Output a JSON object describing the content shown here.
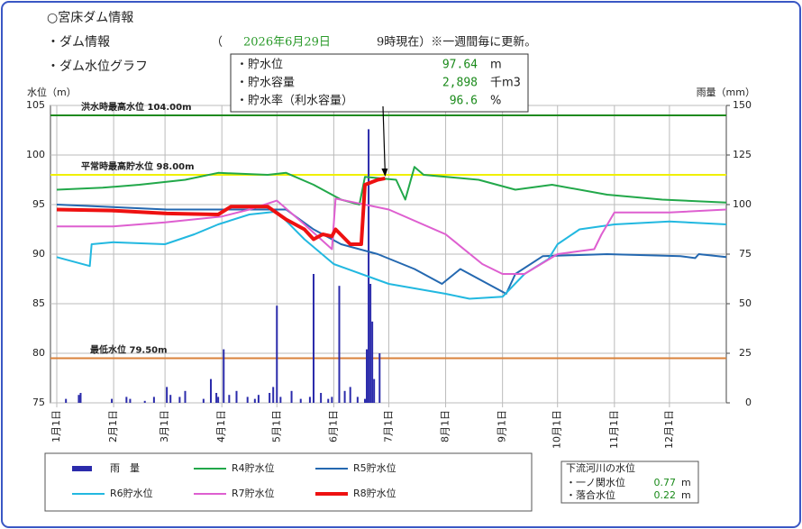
{
  "header": {
    "title": "○宮床ダム情報",
    "dam_info_label": "・ダム情報",
    "date_open": "（",
    "date": "2026年6月29日",
    "time_note": "9時現在）※一週間毎に更新。",
    "graph_label": "・ダム水位グラフ"
  },
  "info_box": {
    "rows": [
      {
        "label": "・貯水位",
        "value": "97.64",
        "unit": "m"
      },
      {
        "label": "・貯水容量",
        "value": "2,898",
        "unit": "千m3"
      },
      {
        "label": "・貯水率（利水容量）",
        "value": "96.6",
        "unit": "%"
      }
    ]
  },
  "downstream": {
    "title": "下流河川の水位",
    "rows": [
      {
        "label": "・一ノ関水位",
        "value": "0.77",
        "unit": "m"
      },
      {
        "label": "・落合水位",
        "value": "0.22",
        "unit": "m"
      }
    ]
  },
  "chart_data": {
    "type": "line",
    "y_label": "水位（m）",
    "y2_label": "雨量（mm）",
    "xlim": [
      0,
      365
    ],
    "xticks": [
      {
        "value": 0,
        "label": "1月1日"
      },
      {
        "value": 31,
        "label": "2月1日"
      },
      {
        "value": 59,
        "label": "3月1日"
      },
      {
        "value": 90,
        "label": "4月1日"
      },
      {
        "value": 120,
        "label": "5月1日"
      },
      {
        "value": 151,
        "label": "6月1日"
      },
      {
        "value": 181,
        "label": "7月1日"
      },
      {
        "value": 212,
        "label": "8月1日"
      },
      {
        "value": 243,
        "label": "9月1日"
      },
      {
        "value": 273,
        "label": "10月1日"
      },
      {
        "value": 304,
        "label": "11月1日"
      },
      {
        "value": 334,
        "label": "12月1日"
      }
    ],
    "ylim": [
      75,
      105
    ],
    "yticks": [
      75,
      80,
      85,
      90,
      95,
      100,
      105
    ],
    "y2lim": [
      0,
      150
    ],
    "y2ticks": [
      0,
      25,
      50,
      75,
      100,
      125,
      150
    ],
    "grid": true,
    "reference_lines": [
      {
        "value": 104,
        "label": "洪水時最高水位 104.00m",
        "color": "#1f8a1f"
      },
      {
        "value": 98,
        "label": "平常時最高貯水位 98.00m",
        "color": "#f0f000"
      },
      {
        "value": 79.5,
        "label": "最低水位 79.50m",
        "color": "#d9823b"
      }
    ],
    "series": [
      {
        "name": "雨　量",
        "type": "bar",
        "axis": "y2",
        "color": "#2b2bab",
        "x": [
          5,
          12,
          13,
          30,
          38,
          40,
          48,
          53,
          60,
          62,
          67,
          70,
          80,
          84,
          87,
          88,
          91,
          94,
          98,
          104,
          108,
          110,
          116,
          118,
          120,
          122,
          128,
          133,
          138,
          140,
          144,
          148,
          150,
          154,
          157,
          160,
          164,
          168,
          169,
          170,
          171,
          172,
          173,
          176
        ],
        "values": [
          2,
          4,
          5,
          2,
          3,
          2,
          1,
          3,
          8,
          4,
          3,
          6,
          2,
          12,
          5,
          3,
          27,
          4,
          6,
          3,
          2,
          4,
          5,
          8,
          49,
          3,
          6,
          2,
          3,
          65,
          5,
          2,
          3,
          59,
          6,
          8,
          3,
          2,
          27,
          138,
          60,
          41,
          12,
          25
        ]
      },
      {
        "name": "R4貯水位",
        "color": "#22a84a",
        "width": 2,
        "x": [
          0,
          25,
          45,
          70,
          88,
          115,
          125,
          140,
          155,
          165,
          168,
          185,
          190,
          195,
          200,
          230,
          250,
          270,
          300,
          330,
          365
        ],
        "values": [
          96.5,
          96.7,
          97,
          97.5,
          98.2,
          98,
          98.2,
          97,
          95.5,
          95,
          97.8,
          97.5,
          95.5,
          98.8,
          98,
          97.5,
          96.5,
          97,
          96,
          95.5,
          95.2
        ]
      },
      {
        "name": "R5貯水位",
        "color": "#2468b0",
        "width": 2,
        "x": [
          0,
          60,
          90,
          125,
          140,
          155,
          175,
          195,
          210,
          220,
          240,
          245,
          250,
          265,
          300,
          340,
          348,
          350,
          365
        ],
        "values": [
          95,
          94.5,
          94.5,
          94.5,
          92.5,
          91,
          90,
          88.5,
          87,
          88.5,
          86.5,
          86,
          88,
          89.8,
          90,
          89.8,
          89.6,
          90,
          89.7
        ]
      },
      {
        "name": "R6貯水位",
        "color": "#22b8e0",
        "width": 2,
        "x": [
          0,
          18,
          19,
          31,
          59,
          75,
          88,
          105,
          120,
          135,
          151,
          181,
          212,
          225,
          243,
          255,
          268,
          273,
          285,
          304,
          334,
          365
        ],
        "values": [
          89.7,
          88.8,
          91,
          91.2,
          91,
          92,
          93,
          94,
          94.3,
          91.5,
          89,
          87,
          86,
          85.5,
          85.7,
          88,
          89.5,
          91,
          92.5,
          93,
          93.3,
          93
        ]
      },
      {
        "name": "R7貯水位",
        "color": "#de5fd0",
        "width": 2,
        "x": [
          0,
          31,
          59,
          90,
          105,
          120,
          135,
          150,
          152,
          160,
          181,
          212,
          232,
          243,
          255,
          273,
          293,
          297,
          304,
          334,
          365
        ],
        "values": [
          92.8,
          92.8,
          93.2,
          93.8,
          94.5,
          95.4,
          93,
          90.5,
          95.6,
          95.3,
          94.5,
          92,
          89,
          88,
          88,
          90,
          90.5,
          92,
          94.2,
          94.2,
          94.5
        ]
      },
      {
        "name": "R8貯水位",
        "color": "#ee1111",
        "width": 4,
        "x": [
          0,
          30,
          60,
          88,
          95,
          115,
          125,
          135,
          140,
          145,
          150,
          152,
          160,
          166,
          168,
          175,
          179
        ],
        "values": [
          94.5,
          94.4,
          94.1,
          94,
          94.8,
          94.8,
          93.5,
          92.5,
          91.5,
          92,
          91.8,
          92.5,
          91,
          91,
          97,
          97.5,
          97.64
        ]
      }
    ]
  }
}
